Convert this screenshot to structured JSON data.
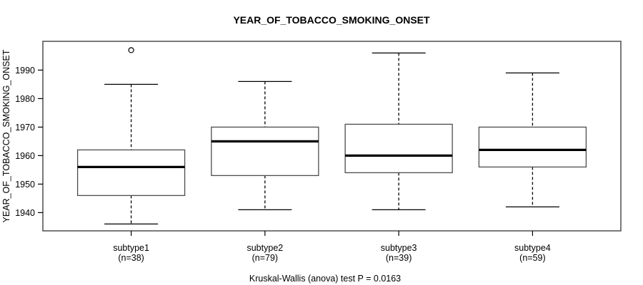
{
  "chart_data": {
    "type": "boxplot",
    "title": "YEAR_OF_TOBACCO_SMOKING_ONSET",
    "ylabel": "YEAR_OF_TOBACCO_SMOKING_ONSET",
    "xlabel": "",
    "footer": "Kruskal-Wallis (anova) test P = 0.0163",
    "y_axis": {
      "ticks": [
        1940,
        1950,
        1960,
        1970,
        1980,
        1990
      ],
      "ylim": [
        1933.6,
        2000.1
      ],
      "grid": false
    },
    "legend": "none",
    "groups": [
      {
        "label": "subtype1",
        "sublabel": "(n=38)",
        "n": 38,
        "whisker_low": 1936,
        "q1": 1946,
        "median": 1956,
        "q3": 1962,
        "whisker_high": 1985,
        "outliers": [
          1997
        ]
      },
      {
        "label": "subtype2",
        "sublabel": "(n=79)",
        "n": 79,
        "whisker_low": 1941,
        "q1": 1953,
        "median": 1965,
        "q3": 1970,
        "whisker_high": 1986,
        "outliers": []
      },
      {
        "label": "subtype3",
        "sublabel": "(n=39)",
        "n": 39,
        "whisker_low": 1941,
        "q1": 1954,
        "median": 1960,
        "q3": 1971,
        "whisker_high": 1996,
        "outliers": []
      },
      {
        "label": "subtype4",
        "sublabel": "(n=59)",
        "n": 59,
        "whisker_low": 1942,
        "q1": 1956,
        "median": 1962,
        "q3": 1970,
        "whisker_high": 1989,
        "outliers": []
      }
    ],
    "colors": {
      "line": "#000000",
      "median": "#000000",
      "box_border": "#4d4d4d",
      "box_fill": "#ffffff",
      "frame": "#4d4d4d",
      "background": "#ffffff",
      "text": "#000000"
    }
  }
}
